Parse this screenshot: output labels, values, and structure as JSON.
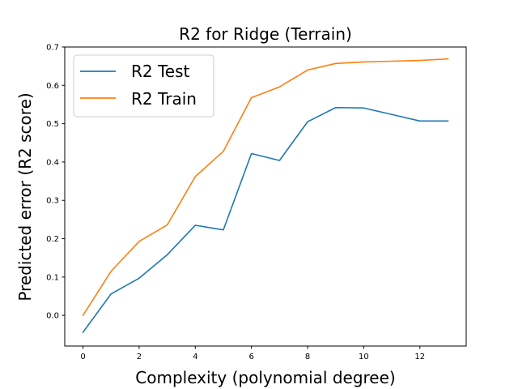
{
  "chart_data": {
    "type": "line",
    "title": "R2 for Ridge (Terrain)",
    "xlabel": "Complexity (polynomial degree)",
    "ylabel": "Predicted error (R2 score)",
    "xlim": [
      -0.65,
      13.65
    ],
    "ylim": [
      -0.08,
      0.7
    ],
    "xticks": [
      0,
      2,
      4,
      6,
      8,
      10,
      12
    ],
    "yticks": [
      0.0,
      0.1,
      0.2,
      0.3,
      0.4,
      0.5,
      0.6,
      0.7
    ],
    "legend_position": "top-left",
    "grid": false,
    "x": [
      0,
      1,
      2,
      3,
      4,
      5,
      6,
      7,
      8,
      9,
      10,
      11,
      12,
      13
    ],
    "series": [
      {
        "name": "R2 Test",
        "color": "#1f77b4",
        "values": [
          -0.044,
          0.056,
          0.097,
          0.158,
          0.235,
          0.223,
          0.422,
          0.404,
          0.505,
          0.542,
          0.541,
          0.524,
          0.507,
          0.507
        ]
      },
      {
        "name": "R2 Train",
        "color": "#ff7f0e",
        "values": [
          0.0,
          0.115,
          0.193,
          0.236,
          0.362,
          0.428,
          0.568,
          0.596,
          0.64,
          0.657,
          0.661,
          0.663,
          0.665,
          0.669
        ]
      }
    ]
  }
}
